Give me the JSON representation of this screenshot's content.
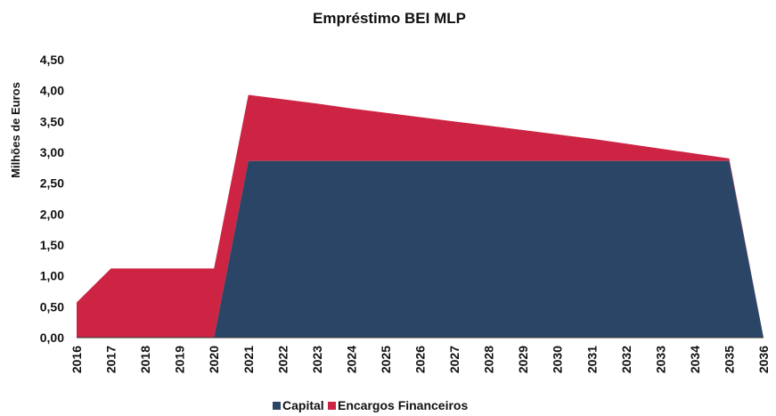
{
  "chart_data": {
    "type": "area",
    "stacked": true,
    "title": "Empréstimo BEI MLP",
    "xlabel": "",
    "ylabel": "Milhões de Euros",
    "x": [
      "2016",
      "2017",
      "2018",
      "2019",
      "2020",
      "2021",
      "2022",
      "2023",
      "2024",
      "2025",
      "2026",
      "2027",
      "2028",
      "2029",
      "2030",
      "2031",
      "2032",
      "2033",
      "2034",
      "2035",
      "2036"
    ],
    "ylim": [
      0,
      4.5
    ],
    "yticks": [
      "0,00",
      "0,50",
      "1,00",
      "1,50",
      "2,00",
      "2,50",
      "3,00",
      "3,50",
      "4,00",
      "4,50"
    ],
    "grid": false,
    "legend_position": "bottom",
    "series": [
      {
        "name": "Capital",
        "color": "#2b4566",
        "values": [
          0,
          0,
          0,
          0,
          0,
          2.86,
          2.86,
          2.86,
          2.86,
          2.86,
          2.86,
          2.86,
          2.86,
          2.86,
          2.86,
          2.86,
          2.86,
          2.86,
          2.86,
          2.86,
          0
        ]
      },
      {
        "name": "Encargos Financeiros",
        "color": "#cc2442",
        "values": [
          0.57,
          1.12,
          1.12,
          1.12,
          1.12,
          1.07,
          1.0,
          0.93,
          0.85,
          0.78,
          0.71,
          0.64,
          0.57,
          0.5,
          0.43,
          0.36,
          0.28,
          0.2,
          0.12,
          0.04,
          0
        ]
      }
    ]
  }
}
